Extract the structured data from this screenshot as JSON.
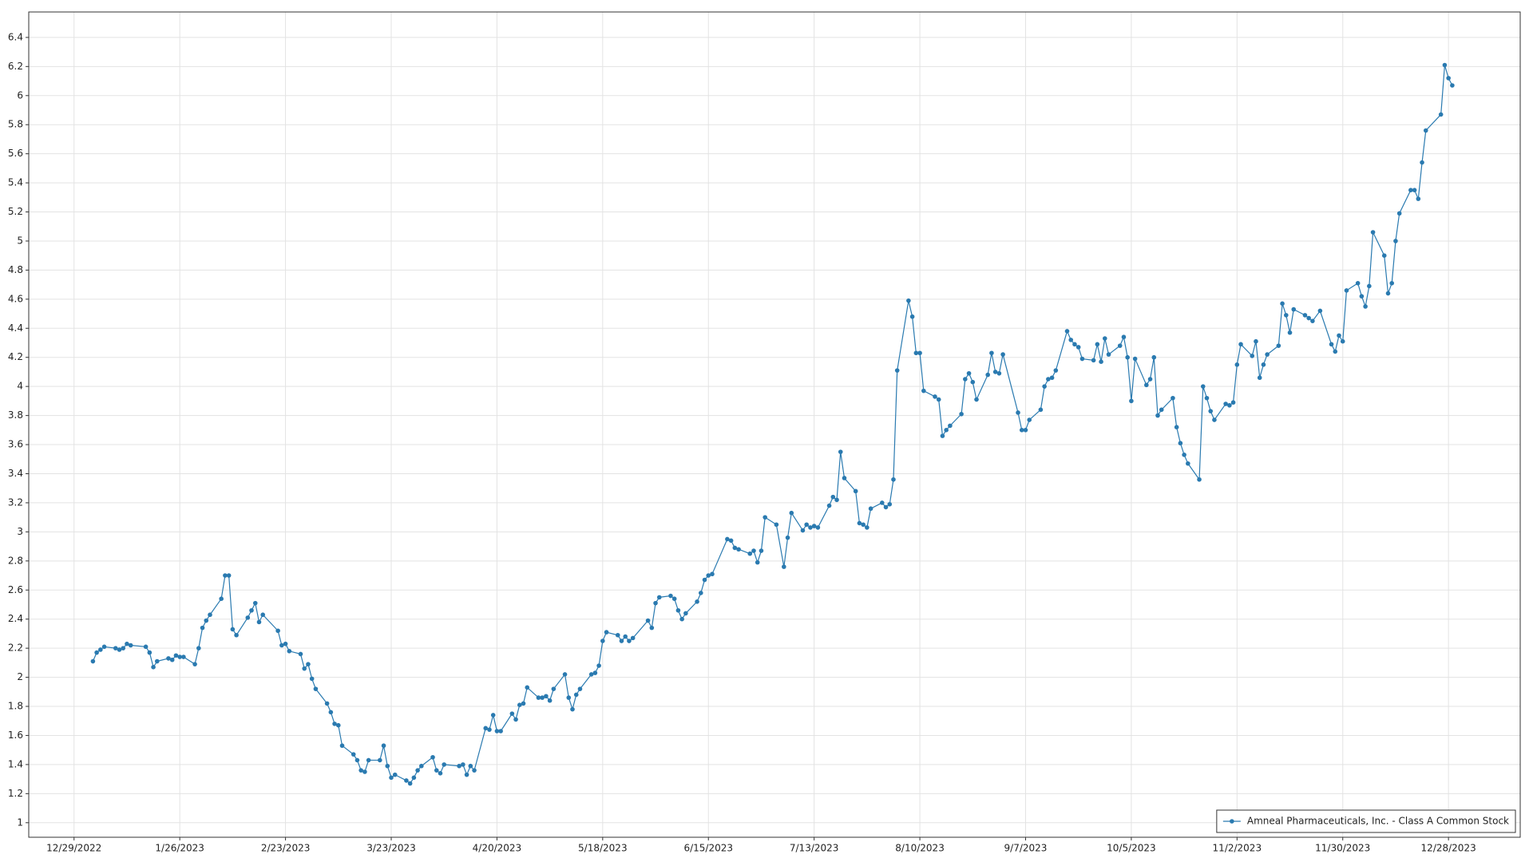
{
  "chart_data": {
    "type": "line",
    "x": [
      "1/3/2023",
      "1/4/2023",
      "1/5/2023",
      "1/6/2023",
      "1/9/2023",
      "1/10/2023",
      "1/11/2023",
      "1/12/2023",
      "1/13/2023",
      "1/17/2023",
      "1/18/2023",
      "1/19/2023",
      "1/20/2023",
      "1/23/2023",
      "1/24/2023",
      "1/25/2023",
      "1/26/2023",
      "1/27/2023",
      "1/30/2023",
      "1/31/2023",
      "2/1/2023",
      "2/2/2023",
      "2/3/2023",
      "2/6/2023",
      "2/7/2023",
      "2/8/2023",
      "2/9/2023",
      "2/10/2023",
      "2/13/2023",
      "2/14/2023",
      "2/15/2023",
      "2/16/2023",
      "2/17/2023",
      "2/21/2023",
      "2/22/2023",
      "2/23/2023",
      "2/24/2023",
      "2/27/2023",
      "2/28/2023",
      "3/1/2023",
      "3/2/2023",
      "3/3/2023",
      "3/6/2023",
      "3/7/2023",
      "3/8/2023",
      "3/9/2023",
      "3/10/2023",
      "3/13/2023",
      "3/14/2023",
      "3/15/2023",
      "3/16/2023",
      "3/17/2023",
      "3/20/2023",
      "3/21/2023",
      "3/22/2023",
      "3/23/2023",
      "3/24/2023",
      "3/27/2023",
      "3/28/2023",
      "3/29/2023",
      "3/30/2023",
      "3/31/2023",
      "4/3/2023",
      "4/4/2023",
      "4/5/2023",
      "4/6/2023",
      "4/10/2023",
      "4/11/2023",
      "4/12/2023",
      "4/13/2023",
      "4/14/2023",
      "4/17/2023",
      "4/18/2023",
      "4/19/2023",
      "4/20/2023",
      "4/21/2023",
      "4/24/2023",
      "4/25/2023",
      "4/26/2023",
      "4/27/2023",
      "4/28/2023",
      "5/1/2023",
      "5/2/2023",
      "5/3/2023",
      "5/4/2023",
      "5/5/2023",
      "5/8/2023",
      "5/9/2023",
      "5/10/2023",
      "5/11/2023",
      "5/12/2023",
      "5/15/2023",
      "5/16/2023",
      "5/17/2023",
      "5/18/2023",
      "5/19/2023",
      "5/22/2023",
      "5/23/2023",
      "5/24/2023",
      "5/25/2023",
      "5/26/2023",
      "5/30/2023",
      "5/31/2023",
      "6/1/2023",
      "6/2/2023",
      "6/5/2023",
      "6/6/2023",
      "6/7/2023",
      "6/8/2023",
      "6/9/2023",
      "6/12/2023",
      "6/13/2023",
      "6/14/2023",
      "6/15/2023",
      "6/16/2023",
      "6/20/2023",
      "6/21/2023",
      "6/22/2023",
      "6/23/2023",
      "6/26/2023",
      "6/27/2023",
      "6/28/2023",
      "6/29/2023",
      "6/30/2023",
      "7/3/2023",
      "7/5/2023",
      "7/6/2023",
      "7/7/2023",
      "7/10/2023",
      "7/11/2023",
      "7/12/2023",
      "7/13/2023",
      "7/14/2023",
      "7/17/2023",
      "7/18/2023",
      "7/19/2023",
      "7/20/2023",
      "7/21/2023",
      "7/24/2023",
      "7/25/2023",
      "7/26/2023",
      "7/27/2023",
      "7/28/2023",
      "7/31/2023",
      "8/1/2023",
      "8/2/2023",
      "8/3/2023",
      "8/4/2023",
      "8/7/2023",
      "8/8/2023",
      "8/9/2023",
      "8/10/2023",
      "8/11/2023",
      "8/14/2023",
      "8/15/2023",
      "8/16/2023",
      "8/17/2023",
      "8/18/2023",
      "8/21/2023",
      "8/22/2023",
      "8/23/2023",
      "8/24/2023",
      "8/25/2023",
      "8/28/2023",
      "8/29/2023",
      "8/30/2023",
      "8/31/2023",
      "9/1/2023",
      "9/5/2023",
      "9/6/2023",
      "9/7/2023",
      "9/8/2023",
      "9/11/2023",
      "9/12/2023",
      "9/13/2023",
      "9/14/2023",
      "9/15/2023",
      "9/18/2023",
      "9/19/2023",
      "9/20/2023",
      "9/21/2023",
      "9/22/2023",
      "9/25/2023",
      "9/26/2023",
      "9/27/2023",
      "9/28/2023",
      "9/29/2023",
      "10/2/2023",
      "10/3/2023",
      "10/4/2023",
      "10/5/2023",
      "10/6/2023",
      "10/9/2023",
      "10/10/2023",
      "10/11/2023",
      "10/12/2023",
      "10/13/2023",
      "10/16/2023",
      "10/17/2023",
      "10/18/2023",
      "10/19/2023",
      "10/20/2023",
      "10/23/2023",
      "10/24/2023",
      "10/25/2023",
      "10/26/2023",
      "10/27/2023",
      "10/30/2023",
      "10/31/2023",
      "11/1/2023",
      "11/2/2023",
      "11/3/2023",
      "11/6/2023",
      "11/7/2023",
      "11/8/2023",
      "11/9/2023",
      "11/10/2023",
      "11/13/2023",
      "11/14/2023",
      "11/15/2023",
      "11/16/2023",
      "11/17/2023",
      "11/20/2023",
      "11/21/2023",
      "11/22/2023",
      "11/24/2023",
      "11/27/2023",
      "11/28/2023",
      "11/29/2023",
      "11/30/2023",
      "12/1/2023",
      "12/4/2023",
      "12/5/2023",
      "12/6/2023",
      "12/7/2023",
      "12/8/2023",
      "12/11/2023",
      "12/12/2023",
      "12/13/2023",
      "12/14/2023",
      "12/15/2023",
      "12/18/2023",
      "12/19/2023",
      "12/20/2023",
      "12/21/2023",
      "12/22/2023",
      "12/26/2023",
      "12/27/2023",
      "12/28/2023",
      "12/29/2023"
    ],
    "series": [
      {
        "name": "Amneal Pharmaceuticals, Inc. - Class A Common Stock",
        "color": "#2a7ab0",
        "values": [
          2.11,
          2.17,
          2.19,
          2.21,
          2.2,
          2.19,
          2.2,
          2.23,
          2.22,
          2.21,
          2.17,
          2.07,
          2.11,
          2.13,
          2.12,
          2.15,
          2.14,
          2.14,
          2.09,
          2.2,
          2.34,
          2.39,
          2.43,
          2.54,
          2.7,
          2.7,
          2.33,
          2.29,
          2.41,
          2.46,
          2.51,
          2.38,
          2.43,
          2.32,
          2.22,
          2.23,
          2.18,
          2.16,
          2.06,
          2.09,
          1.99,
          1.92,
          1.82,
          1.76,
          1.68,
          1.67,
          1.53,
          1.47,
          1.43,
          1.36,
          1.35,
          1.43,
          1.43,
          1.53,
          1.39,
          1.31,
          1.33,
          1.29,
          1.27,
          1.31,
          1.36,
          1.39,
          1.45,
          1.36,
          1.34,
          1.4,
          1.39,
          1.4,
          1.33,
          1.39,
          1.36,
          1.65,
          1.64,
          1.74,
          1.63,
          1.63,
          1.75,
          1.71,
          1.81,
          1.82,
          1.93,
          1.86,
          1.86,
          1.87,
          1.84,
          1.92,
          2.02,
          1.86,
          1.78,
          1.88,
          1.92,
          2.02,
          2.03,
          2.08,
          2.25,
          2.31,
          2.29,
          2.25,
          2.28,
          2.25,
          2.27,
          2.39,
          2.34,
          2.51,
          2.55,
          2.56,
          2.54,
          2.46,
          2.4,
          2.44,
          2.52,
          2.58,
          2.67,
          2.7,
          2.71,
          2.95,
          2.94,
          2.89,
          2.88,
          2.85,
          2.87,
          2.79,
          2.87,
          3.1,
          3.05,
          2.76,
          2.96,
          3.13,
          3.01,
          3.05,
          3.03,
          3.04,
          3.03,
          3.18,
          3.24,
          3.22,
          3.55,
          3.37,
          3.28,
          3.06,
          3.05,
          3.03,
          3.16,
          3.2,
          3.17,
          3.19,
          3.36,
          4.11,
          4.59,
          4.48,
          4.23,
          4.23,
          3.97,
          3.93,
          3.91,
          3.66,
          3.7,
          3.73,
          3.81,
          4.05,
          4.09,
          4.03,
          3.91,
          4.08,
          4.23,
          4.1,
          4.09,
          4.22,
          3.82,
          3.7,
          3.7,
          3.77,
          3.84,
          4.0,
          4.05,
          4.06,
          4.11,
          4.38,
          4.32,
          4.29,
          4.27,
          4.19,
          4.18,
          4.29,
          4.17,
          4.33,
          4.22,
          4.28,
          4.34,
          4.2,
          3.9,
          4.19,
          4.01,
          4.05,
          4.2,
          3.8,
          3.84,
          3.92,
          3.72,
          3.61,
          3.53,
          3.47,
          3.36,
          4.0,
          3.92,
          3.83,
          3.77,
          3.88,
          3.87,
          3.89,
          4.15,
          4.29,
          4.21,
          4.31,
          4.06,
          4.15,
          4.22,
          4.28,
          4.57,
          4.49,
          4.37,
          4.53,
          4.49,
          4.47,
          4.45,
          4.52,
          4.29,
          4.24,
          4.35,
          4.31,
          4.66,
          4.71,
          4.62,
          4.55,
          4.69,
          5.06,
          4.9,
          4.64,
          4.71,
          5.0,
          5.19,
          5.35,
          5.35,
          5.29,
          5.54,
          5.76,
          5.87,
          6.21,
          6.12,
          6.07
        ]
      }
    ],
    "xlim": [
      "12/17/2022",
      "1/16/2024"
    ],
    "xticks": [
      "12/29/2022",
      "1/26/2023",
      "2/23/2023",
      "3/23/2023",
      "4/20/2023",
      "5/18/2023",
      "6/15/2023",
      "7/13/2023",
      "8/10/2023",
      "9/7/2023",
      "10/5/2023",
      "11/2/2023",
      "11/30/2023",
      "12/28/2023"
    ],
    "ylim": [
      0.9,
      6.575
    ],
    "yticks": [
      1,
      1.2,
      1.4,
      1.6,
      1.8,
      2,
      2.2,
      2.4,
      2.6,
      2.8,
      3,
      3.2,
      3.4,
      3.6,
      3.8,
      4,
      4.2,
      4.4,
      4.6,
      4.8,
      5,
      5.2,
      5.4,
      5.6,
      5.8,
      6,
      6.2,
      6.4
    ],
    "grid": true,
    "legend": "lower right"
  }
}
